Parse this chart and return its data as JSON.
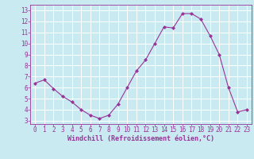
{
  "x": [
    0,
    1,
    2,
    3,
    4,
    5,
    6,
    7,
    8,
    9,
    10,
    11,
    12,
    13,
    14,
    15,
    16,
    17,
    18,
    19,
    20,
    21,
    22,
    23
  ],
  "y": [
    6.4,
    6.7,
    5.9,
    5.2,
    4.7,
    4.0,
    3.5,
    3.2,
    3.5,
    4.5,
    6.0,
    7.5,
    8.5,
    10.0,
    11.5,
    11.4,
    12.7,
    12.7,
    12.2,
    10.7,
    9.0,
    6.0,
    3.8,
    4.0
  ],
  "line_color": "#993399",
  "marker": "D",
  "marker_size": 2.0,
  "bg_color": "#c8eaf0",
  "grid_color": "#ffffff",
  "xlabel": "Windchill (Refroidissement éolien,°C)",
  "ylabel_ticks": [
    3,
    4,
    5,
    6,
    7,
    8,
    9,
    10,
    11,
    12,
    13
  ],
  "xlim": [
    -0.5,
    23.5
  ],
  "ylim": [
    2.7,
    13.5
  ],
  "tick_color": "#993399",
  "axis_label_color": "#993399",
  "spine_color": "#993399",
  "xlabel_fontsize": 6.0,
  "tick_fontsize": 5.5
}
